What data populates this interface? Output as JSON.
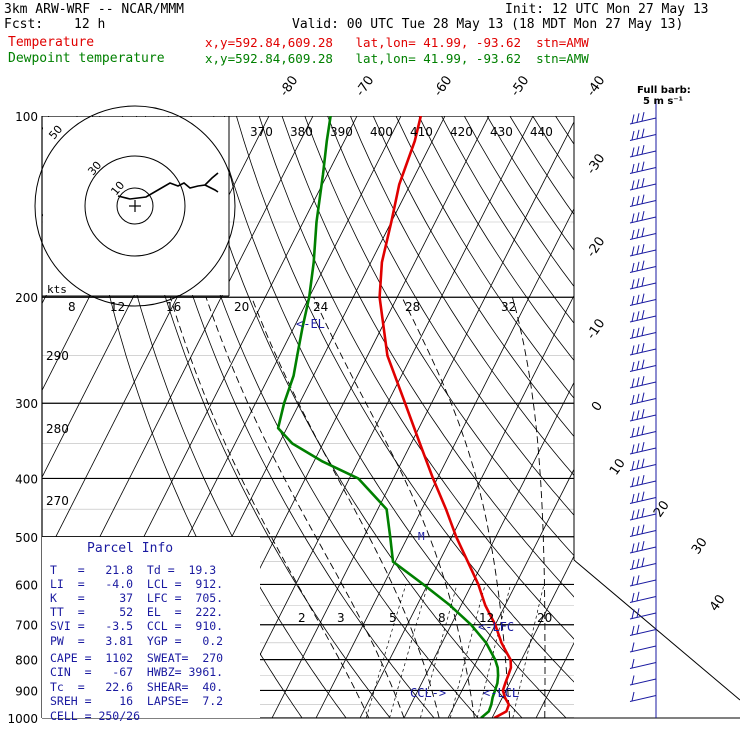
{
  "header": {
    "model": "3km ARW-WRF -- NCAR/MMM",
    "init": "Init: 12 UTC Mon 27 May 13",
    "fcst_label": "Fcst:",
    "fcst_value": "12 h",
    "valid": "Valid: 00 UTC Tue 28 May 13 (18 MDT Mon 27 May 13)",
    "temp_label": "Temperature",
    "temp_loc": "x,y=592.84,609.28   lat,lon= 41.99, -93.62  stn=AMW",
    "dew_label": "Dewpoint temperature",
    "dew_loc": "x,y=592.84,609.28   lat,lon= 41.99, -93.62  stn=AMW"
  },
  "legend_barb": {
    "line1": "Full barb:",
    "line2": "5 m s⁻¹"
  },
  "colors": {
    "temperature": "#e00000",
    "dewpoint": "#008000",
    "info": "#1a1aa0",
    "grid": "#000000"
  },
  "parcel": {
    "title": "Parcel Info",
    "lines": [
      "T   =   21.8  Td =  19.3",
      "LI  =   -4.0  LCL =  912.",
      "K   =     37  LFC =  705.",
      "TT  =     52  EL  =  222.",
      "SVI =   -3.5  CCL =  910.",
      "PW  =   3.81  YGP =   0.2",
      "CAPE =  1102  SWEAT=  270",
      "CIN  =   -67  HWBZ= 3961.",
      "Tc  =   22.6  SHEAR=  40.",
      "SREH =    16  LAPSE=  7.2",
      "CELL = 250/26"
    ]
  },
  "markers": {
    "el": "<-EL",
    "lfc": "<-LFC",
    "lcl": "<-LCL",
    "ccl": "CCL->",
    "m": "M"
  },
  "hodograph": {
    "rings": [
      "50",
      "30",
      "10"
    ],
    "unit": "kts"
  },
  "chart_data": {
    "type": "line",
    "pressure_levels": [
      100,
      200,
      300,
      400,
      500,
      600,
      700,
      800,
      900,
      1000
    ],
    "pressure_labels": [
      "100",
      "200",
      "300",
      "400",
      "500",
      "600",
      "700",
      "800",
      "900",
      "1000"
    ],
    "isotherm_labels": [
      "-80",
      "-70",
      "-60",
      "-50",
      "-40",
      "-30",
      "-20",
      "-10",
      "0",
      "10",
      "20",
      "30",
      "40"
    ],
    "theta_labels": [
      "370",
      "380",
      "390",
      "400",
      "410",
      "420",
      "430",
      "440"
    ],
    "theta_low_labels": [
      "290",
      "280",
      "270"
    ],
    "theta_e_labels": [
      "8",
      "12",
      "16",
      "20",
      "24",
      "28",
      "32"
    ],
    "mixing_ratio_labels": [
      "2",
      "3",
      "5",
      "8",
      "12",
      "20"
    ],
    "series": [
      {
        "name": "Temperature",
        "points": [
          [
            1000,
            20.5
          ],
          [
            975,
            22.5
          ],
          [
            950,
            22.3
          ],
          [
            925,
            20.6
          ],
          [
            900,
            19.3
          ],
          [
            875,
            19.0
          ],
          [
            850,
            18.8
          ],
          [
            825,
            18.5
          ],
          [
            800,
            17.5
          ],
          [
            775,
            15.5
          ],
          [
            750,
            13.5
          ],
          [
            700,
            10.0
          ],
          [
            650,
            5.5
          ],
          [
            600,
            1.5
          ],
          [
            550,
            -3.5
          ],
          [
            500,
            -9.0
          ],
          [
            450,
            -14.5
          ],
          [
            400,
            -21.0
          ],
          [
            350,
            -28.0
          ],
          [
            300,
            -36.0
          ],
          [
            250,
            -45.5
          ],
          [
            200,
            -54.0
          ],
          [
            175,
            -57.5
          ],
          [
            150,
            -60.0
          ],
          [
            130,
            -62.5
          ],
          [
            110,
            -64.0
          ],
          [
            100,
            -65.5
          ]
        ]
      },
      {
        "name": "Dewpoint temperature",
        "points": [
          [
            1000,
            17.5
          ],
          [
            975,
            18.5
          ],
          [
            950,
            18.3
          ],
          [
            925,
            17.8
          ],
          [
            900,
            17.5
          ],
          [
            875,
            17.2
          ],
          [
            850,
            16.5
          ],
          [
            825,
            15.5
          ],
          [
            800,
            14.0
          ],
          [
            750,
            10.0
          ],
          [
            700,
            4.5
          ],
          [
            650,
            -2.5
          ],
          [
            600,
            -11.0
          ],
          [
            550,
            -20.5
          ],
          [
            500,
            -24.0
          ],
          [
            450,
            -28.0
          ],
          [
            400,
            -38.0
          ],
          [
            375,
            -48.0
          ],
          [
            350,
            -57.0
          ],
          [
            330,
            -62.0
          ],
          [
            300,
            -63.5
          ],
          [
            270,
            -64.5
          ],
          [
            250,
            -66.0
          ],
          [
            225,
            -68.0
          ],
          [
            200,
            -70.0
          ],
          [
            175,
            -73.0
          ],
          [
            150,
            -77.0
          ],
          [
            125,
            -81.0
          ],
          [
            110,
            -84.0
          ],
          [
            100,
            -86.0
          ]
        ]
      }
    ]
  }
}
